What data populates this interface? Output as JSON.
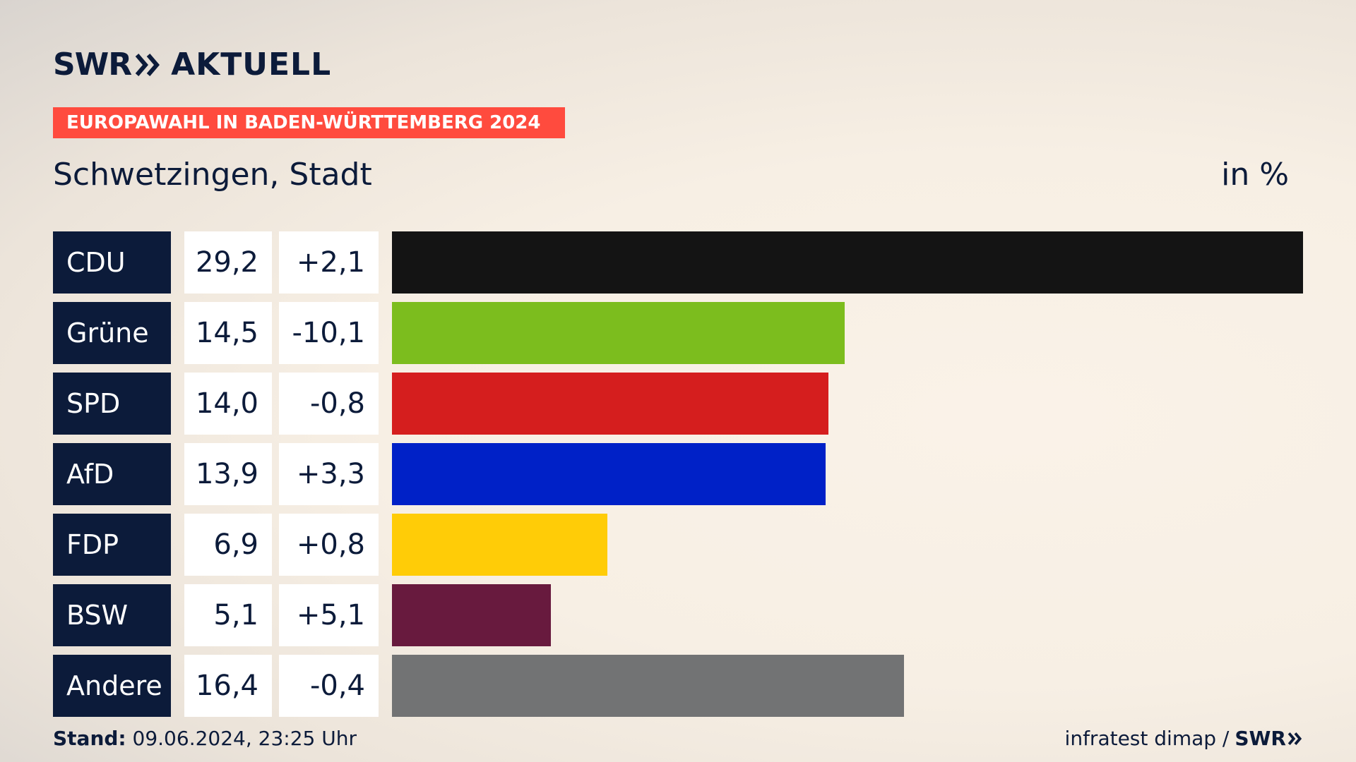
{
  "brand": {
    "logo_left": "SWR",
    "logo_right": "AKTUELL",
    "chevron_icon": "double-chevron-right-icon",
    "color": "#0c1b3a"
  },
  "banner": {
    "text": "EUROPAWAHL IN BADEN-WÜRTTEMBERG 2024",
    "color": "#ff4b3e"
  },
  "region": "Schwetzingen, Stadt",
  "unit": "in %",
  "chart_data": {
    "type": "bar",
    "orientation": "horizontal",
    "categories": [
      "CDU",
      "Grüne",
      "SPD",
      "AfD",
      "FDP",
      "BSW",
      "Andere"
    ],
    "values": [
      29.2,
      14.5,
      14.0,
      13.9,
      6.9,
      5.1,
      16.4
    ],
    "value_labels": [
      "29,2",
      "14,5",
      "14,0",
      "13,9",
      "6,9",
      "5,1",
      "16,4"
    ],
    "change_labels": [
      "+2,1",
      "-10,1",
      "-0,8",
      "+3,3",
      "+0,8",
      "+5,1",
      "-0,4"
    ],
    "changes": [
      2.1,
      -10.1,
      -0.8,
      3.3,
      0.8,
      5.1,
      -0.4
    ],
    "colors": [
      "#141414",
      "#7cbd1e",
      "#d51e1e",
      "#0021c7",
      "#ffcc07",
      "#681a3e",
      "#727374"
    ],
    "xlim": [
      0,
      29.2
    ]
  },
  "footer": {
    "stand_label": "Stand:",
    "stand_value": "09.06.2024, 23:25 Uhr",
    "source": "infratest dimap /",
    "source_brand": "SWR"
  }
}
